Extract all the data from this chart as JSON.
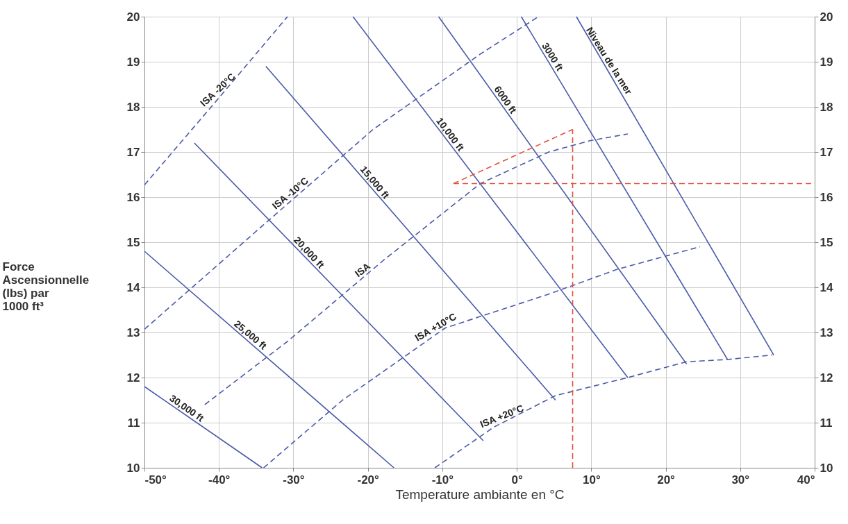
{
  "chart_data": {
    "type": "line",
    "xlabel": "Temperature ambiante en °C",
    "ylabel": "Force Ascensionnelle (lbs) par 1000 ft³",
    "xlim": [
      -50,
      40
    ],
    "ylim": [
      10,
      20
    ],
    "y2lim": [
      10,
      20
    ],
    "xticks": [
      {
        "value": -50,
        "label": "-50°"
      },
      {
        "value": -40,
        "label": "-40°"
      },
      {
        "value": -30,
        "label": "-30°"
      },
      {
        "value": -20,
        "label": "-20°"
      },
      {
        "value": -10,
        "label": "-10°"
      },
      {
        "value": 0,
        "label": "0°"
      },
      {
        "value": 10,
        "label": "10°"
      },
      {
        "value": 20,
        "label": "20°"
      },
      {
        "value": 30,
        "label": "30°"
      },
      {
        "value": 40,
        "label": "40°"
      }
    ],
    "yticks": [
      10,
      11,
      12,
      13,
      14,
      15,
      16,
      17,
      18,
      19,
      20
    ],
    "y2ticks": [
      10,
      11,
      12,
      13,
      14,
      15,
      16,
      17,
      18,
      19,
      20
    ],
    "grid": true,
    "marker": "none",
    "series": [
      {
        "color": "#4a5aa8",
        "line_style": "solid",
        "x": [
          8,
          34.5
        ],
        "values": [
          20,
          12.5
        ]
      },
      {
        "color": "#4a5aa8",
        "line_style": "solid",
        "x": [
          0.6,
          28.3
        ],
        "values": [
          20,
          12.4
        ]
      },
      {
        "color": "#4a5aa8",
        "line_style": "solid",
        "x": [
          -10.5,
          22.8
        ],
        "values": [
          20,
          12.3
        ]
      },
      {
        "color": "#4a5aa8",
        "line_style": "solid",
        "x": [
          -22,
          14.9
        ],
        "values": [
          20,
          12.0
        ]
      },
      {
        "color": "#4a5aa8",
        "line_style": "solid",
        "x": [
          -33.7,
          5.2
        ],
        "values": [
          18.9,
          11.5
        ]
      },
      {
        "color": "#4a5aa8",
        "line_style": "solid",
        "x": [
          -43.3,
          -4.5
        ],
        "values": [
          17.2,
          10.6
        ]
      },
      {
        "color": "#4a5aa8",
        "line_style": "solid",
        "x": [
          -50,
          -16.5
        ],
        "values": [
          14.8,
          10
        ]
      },
      {
        "color": "#4a5aa8",
        "line_style": "solid",
        "x": [
          -50,
          -34.2
        ],
        "values": [
          11.8,
          10
        ]
      },
      {
        "color": "#4a5aa8",
        "line_style": "dashed",
        "x": [
          -50,
          -40,
          -30.8
        ],
        "values": [
          16.27,
          18.2,
          20
        ]
      },
      {
        "color": "#4a5aa8",
        "line_style": "dashed",
        "x": [
          -50,
          -33.7,
          -19.3,
          -4.9,
          2.9
        ],
        "values": [
          13.07,
          15.43,
          17.5,
          19.17,
          20
        ]
      },
      {
        "color": "#4a5aa8",
        "line_style": "dashed",
        "x": [
          -41.9,
          -30.8,
          -17.9,
          -4.9,
          4.3,
          9.8,
          14.9
        ],
        "values": [
          11.4,
          12.8,
          14.6,
          16.3,
          17.0,
          17.25,
          17.4
        ]
      },
      {
        "color": "#4a5aa8",
        "line_style": "dashed",
        "x": [
          -34,
          -23.4,
          -9.6,
          4.3,
          13.5,
          24.6
        ],
        "values": [
          10,
          11.5,
          13.1,
          13.85,
          14.4,
          14.9
        ]
      },
      {
        "color": "#4a5aa8",
        "line_style": "dashed",
        "x": [
          -11,
          -3.1,
          5.2,
          14.9,
          22.8,
          28.3,
          34.3
        ],
        "values": [
          10,
          10.9,
          11.6,
          12.0,
          12.35,
          12.4,
          12.5
        ]
      },
      {
        "color": "#e0503c",
        "line_style": "dashed",
        "x": [
          7.5,
          7.5
        ],
        "values": [
          10,
          17.5
        ]
      },
      {
        "color": "#e0503c",
        "line_style": "dashed",
        "x": [
          -8.5,
          7.5
        ],
        "values": [
          16.3,
          17.5
        ]
      },
      {
        "color": "#e0503c",
        "line_style": "dashed",
        "axis": "y2",
        "x": [
          -8.5,
          40
        ],
        "values": [
          16.3,
          16.3
        ]
      }
    ],
    "annotations": [
      {
        "text": "Niveau de la mer",
        "x": 11.7,
        "y": 18.95
      },
      {
        "text": "3000 ft",
        "x": 4.1,
        "y": 19.04
      },
      {
        "text": "6000 ft",
        "x": -2.2,
        "y": 18.08
      },
      {
        "text": "10,000 ft",
        "x": -9.6,
        "y": 17.31
      },
      {
        "text": "15,000 ft",
        "x": -19.7,
        "y": 16.24
      },
      {
        "text": "20,000 ft",
        "x": -28.5,
        "y": 14.68
      },
      {
        "text": "25,000 ft",
        "x": -36.3,
        "y": 12.84
      },
      {
        "text": "30,000 ft",
        "x": -44.8,
        "y": 11.21
      },
      {
        "text": "ISA -20°C",
        "x": -39.6,
        "y": 18.28
      },
      {
        "text": "ISA -10°C",
        "x": -29.9,
        "y": 15.98
      },
      {
        "text": "ISA",
        "x": -20.2,
        "y": 14.28
      },
      {
        "text": "ISA +10°C",
        "x": -10.5,
        "y": 13.0
      },
      {
        "text": "ISA +20°C",
        "x": -1.7,
        "y": 11.02
      }
    ]
  }
}
